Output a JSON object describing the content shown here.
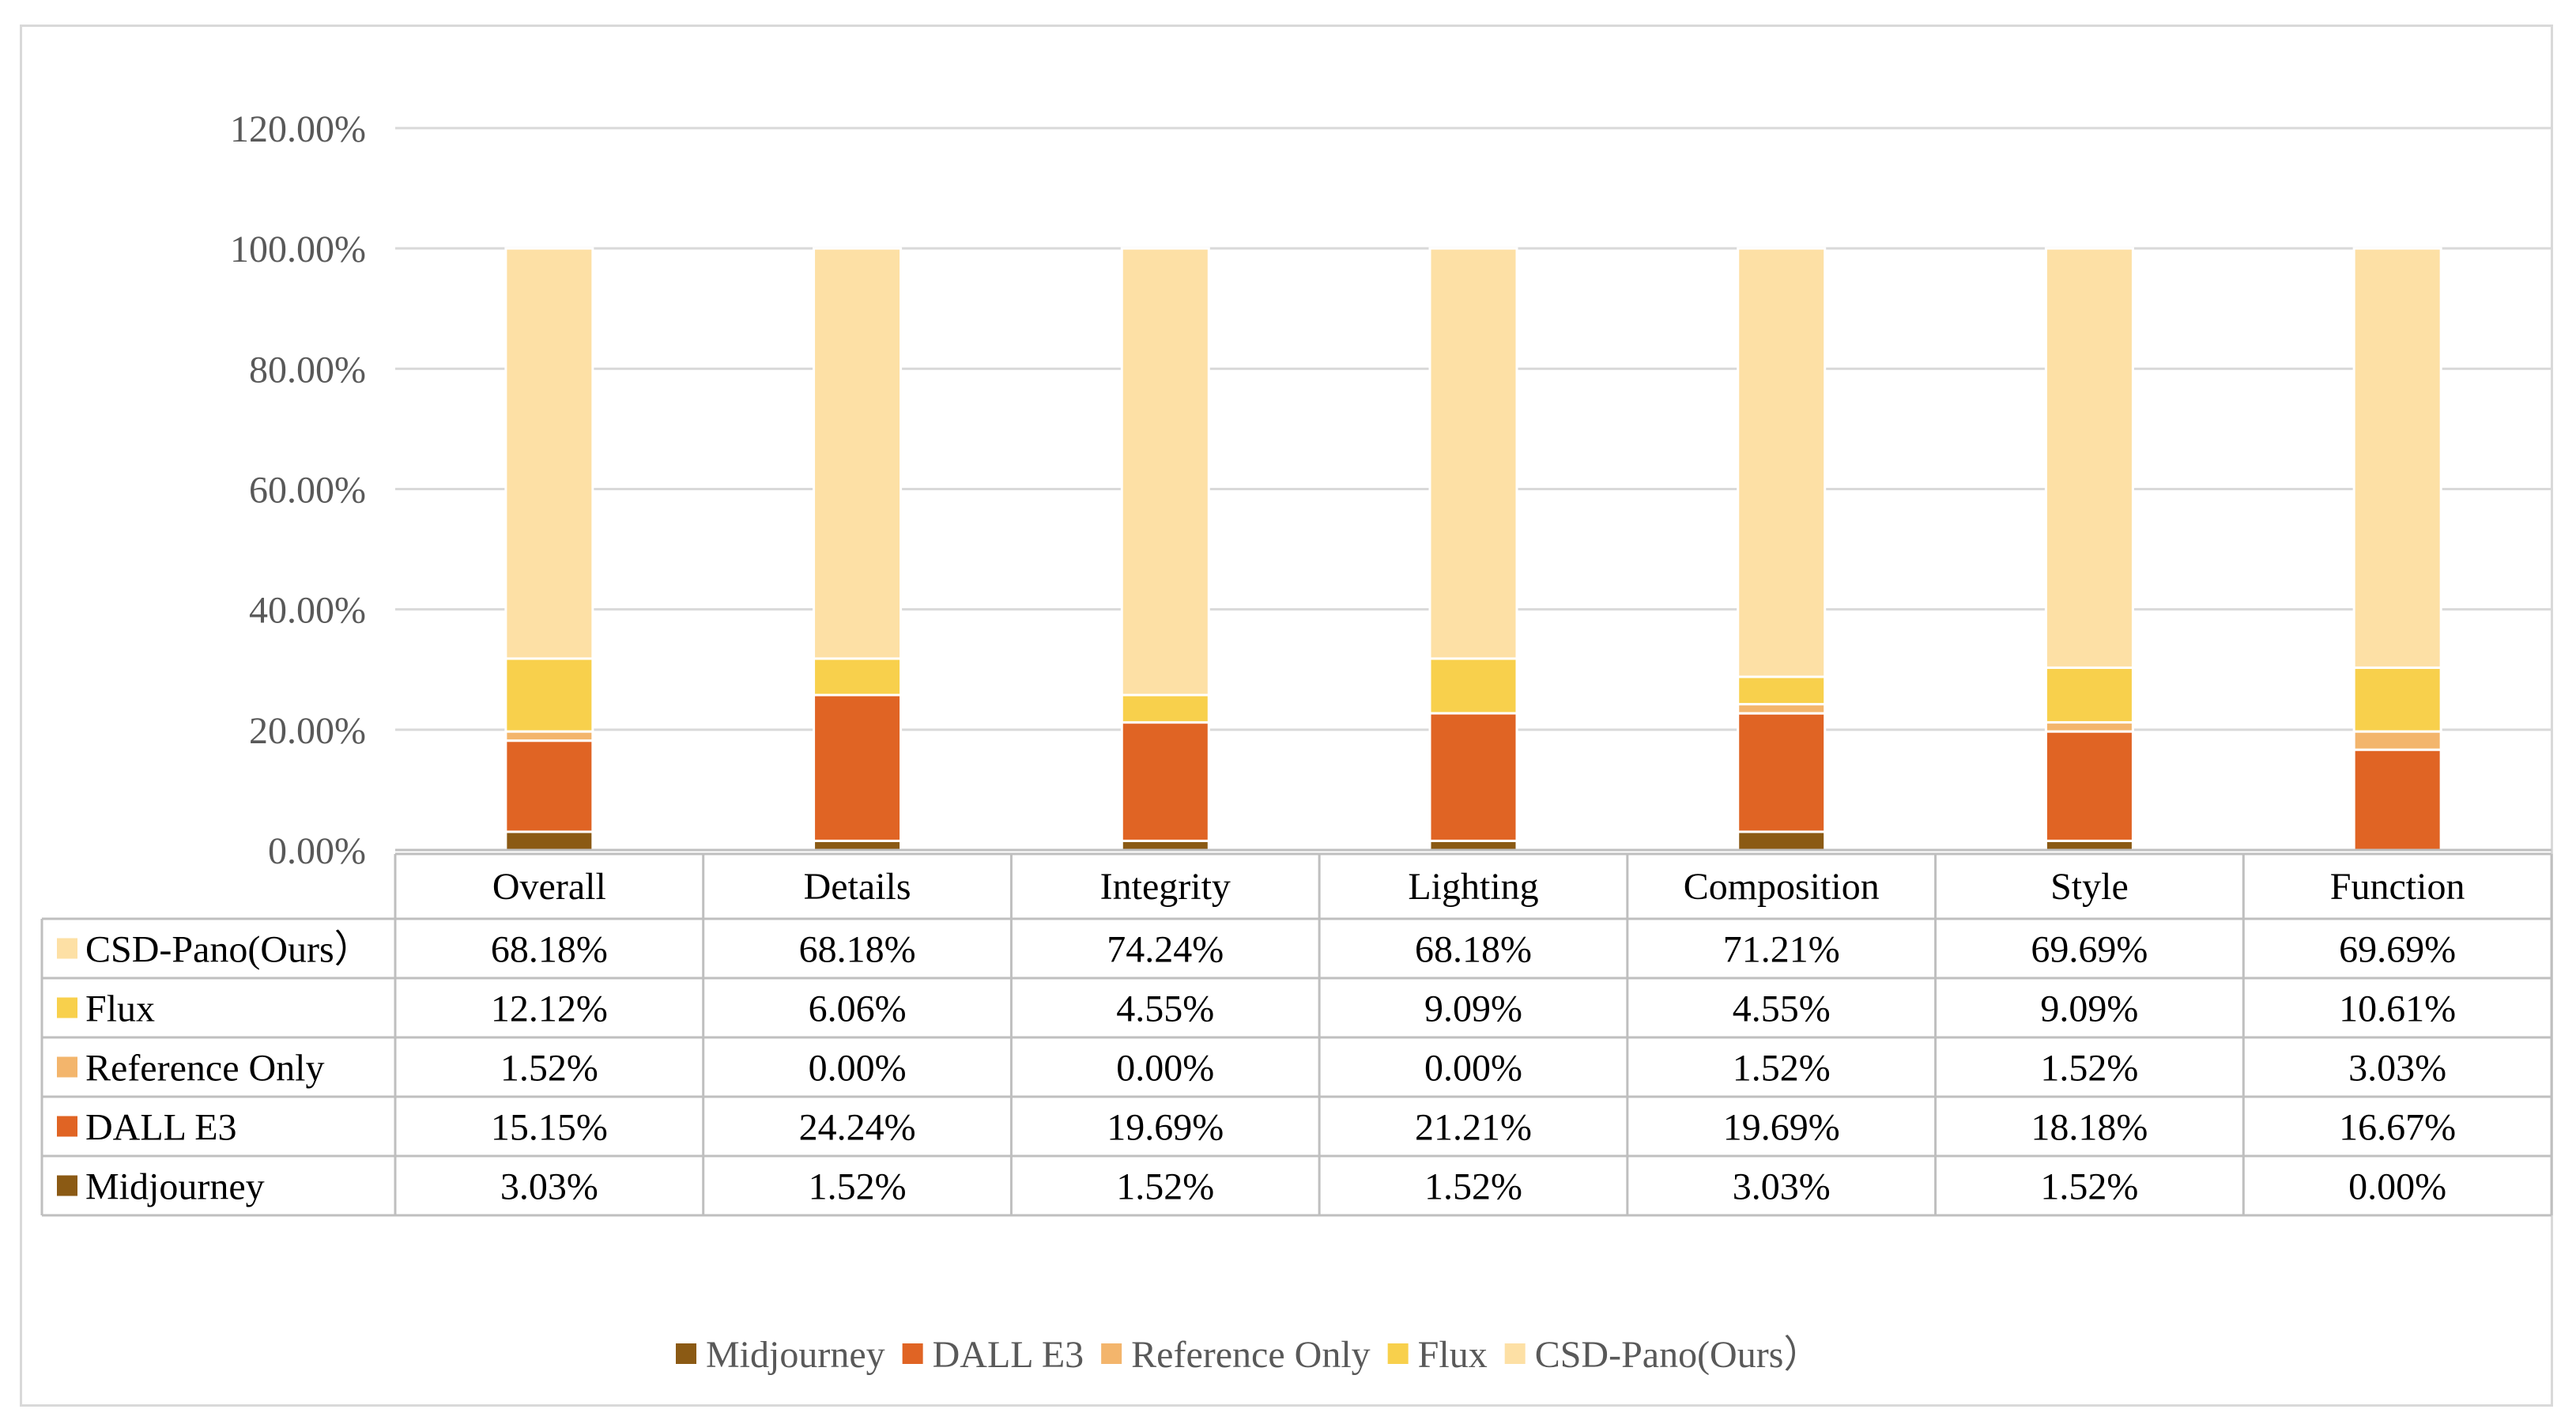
{
  "chart_data": {
    "type": "bar",
    "stacked": true,
    "categories": [
      "Overall",
      "Details",
      "Integrity",
      "Lighting",
      "Composition",
      "Style",
      "Function"
    ],
    "series": [
      {
        "name": "Midjourney",
        "color": "#8b5a14",
        "values": [
          3.03,
          1.52,
          1.52,
          1.52,
          3.03,
          1.52,
          0.0
        ],
        "labels": [
          "3.03%",
          "1.52%",
          "1.52%",
          "1.52%",
          "3.03%",
          "1.52%",
          "0.00%"
        ]
      },
      {
        "name": "DALL E3",
        "color": "#e06424",
        "values": [
          15.15,
          24.24,
          19.69,
          21.21,
          19.69,
          18.18,
          16.67
        ],
        "labels": [
          "15.15%",
          "24.24%",
          "19.69%",
          "21.21%",
          "19.69%",
          "18.18%",
          "16.67%"
        ]
      },
      {
        "name": "Reference Only",
        "color": "#f3b56c",
        "values": [
          1.52,
          0.0,
          0.0,
          0.0,
          1.52,
          1.52,
          3.03
        ],
        "labels": [
          "1.52%",
          "0.00%",
          "0.00%",
          "0.00%",
          "1.52%",
          "1.52%",
          "3.03%"
        ]
      },
      {
        "name": "Flux",
        "color": "#f8d04c",
        "values": [
          12.12,
          6.06,
          4.55,
          9.09,
          4.55,
          9.09,
          10.61
        ],
        "labels": [
          "12.12%",
          "6.06%",
          "4.55%",
          "9.09%",
          "4.55%",
          "9.09%",
          "10.61%"
        ]
      },
      {
        "name": "CSD-Pano(Ours）",
        "color": "#fde0a5",
        "values": [
          68.18,
          68.18,
          74.24,
          68.18,
          71.21,
          69.69,
          69.69
        ],
        "labels": [
          "68.18%",
          "68.18%",
          "74.24%",
          "68.18%",
          "71.21%",
          "69.69%",
          "69.69%"
        ]
      }
    ],
    "table_row_order": [
      "CSD-Pano(Ours）",
      "Flux",
      "Reference Only",
      "DALL E3",
      "Midjourney"
    ],
    "ylim": [
      0,
      120
    ],
    "yticks": [
      0,
      20,
      40,
      60,
      80,
      100,
      120
    ],
    "ytick_labels": [
      "0.00%",
      "20.00%",
      "40.00%",
      "60.00%",
      "80.00%",
      "100.00%",
      "120.00%"
    ],
    "title": "",
    "xlabel": "",
    "ylabel": "",
    "grid": true,
    "legend_position": "bottom",
    "data_table": true
  }
}
